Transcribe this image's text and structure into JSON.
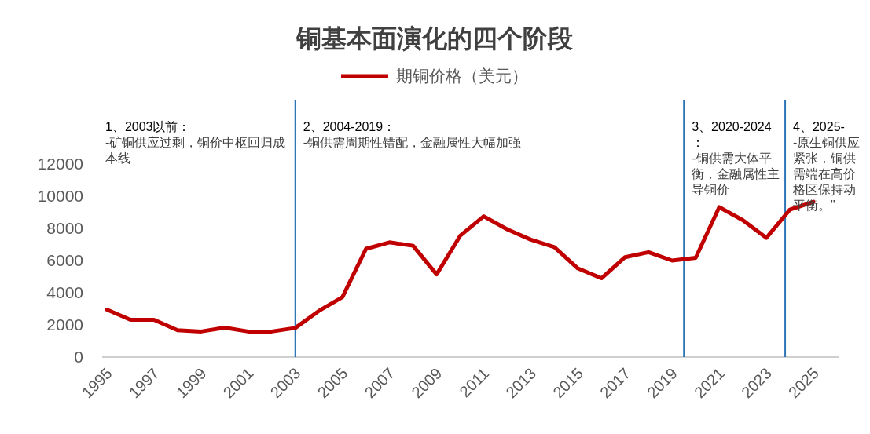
{
  "chart_data": {
    "type": "line",
    "title": "铜基本面演化的四个阶段",
    "x": [
      1995,
      1996,
      1997,
      1998,
      1999,
      2000,
      2001,
      2002,
      2003,
      2004,
      2005,
      2006,
      2007,
      2008,
      2009,
      2010,
      2011,
      2012,
      2013,
      2014,
      2015,
      2016,
      2017,
      2018,
      2019,
      2020,
      2021,
      2022,
      2023,
      2024,
      2025
    ],
    "series": [
      {
        "name": "期铜价格（美元）",
        "color": "#c00000",
        "values": [
          2950,
          2320,
          2320,
          1670,
          1590,
          1830,
          1590,
          1590,
          1810,
          2870,
          3730,
          6730,
          7130,
          6920,
          5140,
          7540,
          8750,
          7940,
          7300,
          6840,
          5510,
          4900,
          6210,
          6520,
          6000,
          6170,
          9320,
          8510,
          7410,
          9160,
          9650
        ]
      }
    ],
    "xlim": [
      1994.8,
      2026.1
    ],
    "xticks": [
      1995,
      1997,
      1999,
      2001,
      2003,
      2005,
      2007,
      2009,
      2011,
      2013,
      2015,
      2017,
      2019,
      2021,
      2023,
      2025
    ],
    "ylim": [
      0,
      16000
    ],
    "yticks": [
      0,
      2000,
      4000,
      6000,
      8000,
      10000,
      12000
    ],
    "ref_lines": [
      {
        "axis": "x",
        "value": 2003,
        "color": "#2e75b6"
      },
      {
        "axis": "x",
        "value": 2019.5,
        "color": "#2e75b6"
      },
      {
        "axis": "x",
        "value": 2023.8,
        "color": "#2e75b6"
      }
    ],
    "annotations": [
      "1、2003以前：\n-矿铜供应过剩，铜价中枢回归成本线",
      "2、2004-2019：\n-铜供需周期性错配，金融属性大幅加强",
      "3、2020-2024：\n-铜供需大体平衡，金融属性主导铜价",
      "4、2025-\n-原生铜供应紧张，铜供需端在高价格区保持动平衡。\""
    ],
    "legend": "top",
    "grid": false,
    "marker": "none",
    "line_style": "solid"
  }
}
